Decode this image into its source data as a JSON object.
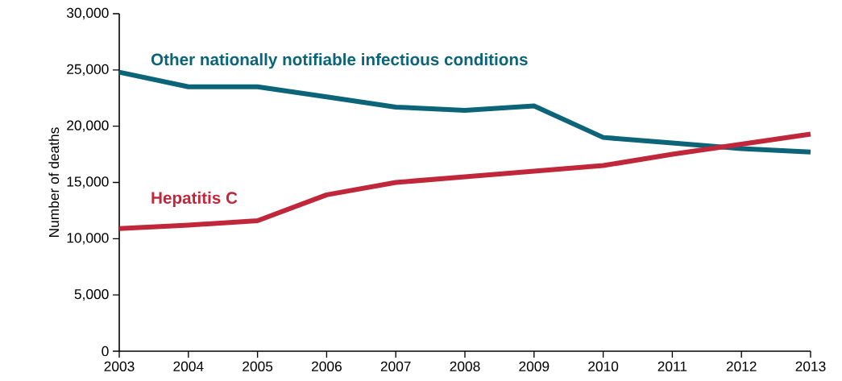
{
  "chart_data": {
    "type": "line",
    "ylabel": "Number of deaths",
    "x": [
      2003,
      2004,
      2005,
      2006,
      2007,
      2008,
      2009,
      2010,
      2011,
      2012,
      2013
    ],
    "series": [
      {
        "name": "Other nationally notifiable infectious conditions",
        "color": "#0b6477",
        "values": [
          24800,
          23500,
          23500,
          22600,
          21700,
          21400,
          21800,
          19000,
          18500,
          18000,
          17700
        ]
      },
      {
        "name": "Hepatitis C",
        "color": "#c0273a",
        "values": [
          10900,
          11200,
          11600,
          13900,
          15000,
          15500,
          16000,
          16500,
          17500,
          18400,
          19300
        ]
      }
    ],
    "xlim": [
      2003,
      2013
    ],
    "xticks": [
      2003,
      2004,
      2005,
      2006,
      2007,
      2008,
      2009,
      2010,
      2011,
      2012,
      2013
    ],
    "ylim": [
      0,
      30000
    ],
    "yticks": [
      {
        "value": 0,
        "label": "0"
      },
      {
        "value": 5000,
        "label": "5,000"
      },
      {
        "value": 10000,
        "label": "10,000"
      },
      {
        "value": 15000,
        "label": "15,000"
      },
      {
        "value": 20000,
        "label": "20,000"
      },
      {
        "value": 25000,
        "label": "25,000"
      },
      {
        "value": 30000,
        "label": "30,000"
      }
    ],
    "grid": false,
    "legend": false,
    "marker": "none",
    "line_style": "solid"
  }
}
